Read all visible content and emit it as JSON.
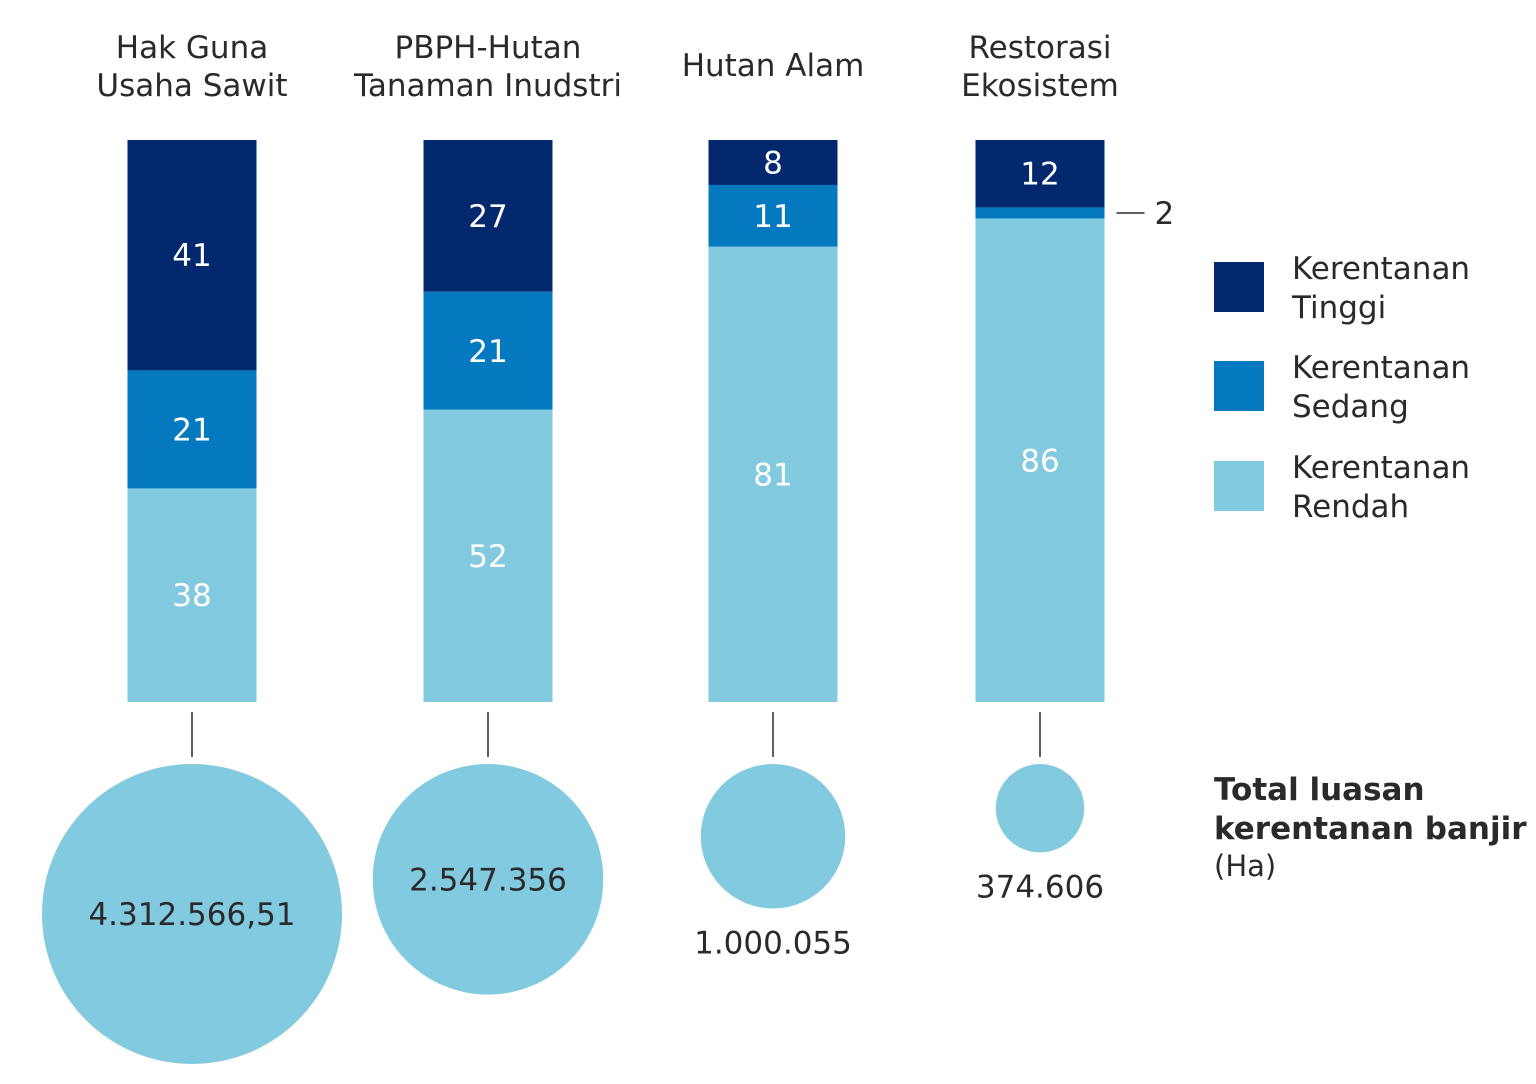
{
  "chart_data": {
    "type": "bar",
    "stacked": true,
    "categories": [
      [
        "Hak Guna",
        "Usaha Sawit"
      ],
      [
        "PBPH-Hutan",
        "Tanaman Inudstri"
      ],
      [
        "Hutan Alam"
      ],
      [
        "Restorasi",
        "Ekosistem"
      ]
    ],
    "series": [
      {
        "name": [
          "Kerentanan",
          "Tinggi"
        ],
        "values": [
          41,
          27,
          8,
          12
        ],
        "color": "#03286e"
      },
      {
        "name": [
          "Kerentanan",
          "Sedang"
        ],
        "values": [
          21,
          21,
          11,
          2
        ],
        "color": "#0479bf"
      },
      {
        "name": [
          "Kerentanan",
          "Rendah"
        ],
        "values": [
          38,
          52,
          81,
          86
        ],
        "color": "#82cadf"
      }
    ],
    "totals": {
      "title": [
        "Total luasan",
        "kerentanan banjir"
      ],
      "unit": "(Ha)",
      "values": [
        4312566.51,
        2547356,
        1000055,
        374606
      ],
      "labels": [
        "4.312.566,51",
        "2.547.356",
        "1.000.055",
        "374.606"
      ],
      "color": "#82cadf"
    },
    "callouts": [
      {
        "category_index": 3,
        "series_index": 1,
        "label": "2"
      }
    ],
    "ylim": [
      0,
      100
    ],
    "legend_position": "right"
  }
}
